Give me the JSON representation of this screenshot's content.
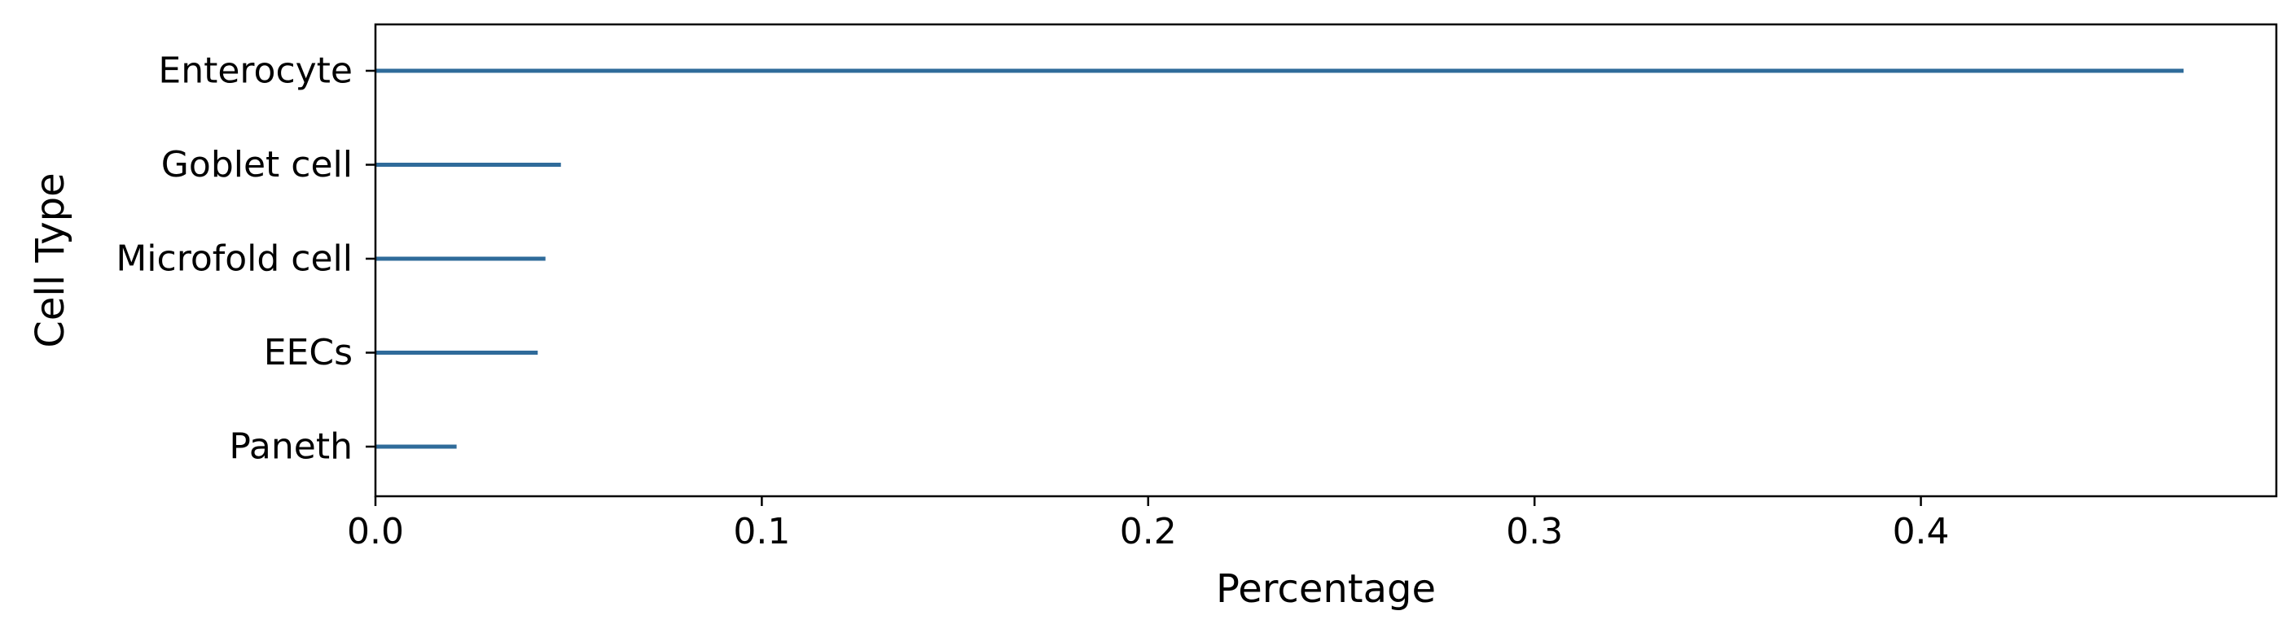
{
  "chart_data": {
    "type": "bar",
    "orientation": "horizontal",
    "categories": [
      "Enterocyte",
      "Goblet cell",
      "Microfold cell",
      "EECs",
      "Paneth"
    ],
    "values": [
      0.468,
      0.048,
      0.044,
      0.042,
      0.021
    ],
    "title": "",
    "xlabel": "Percentage",
    "ylabel": "Cell Type",
    "xlim": [
      0.0,
      0.492
    ],
    "xticks": [
      0.0,
      0.1,
      0.2,
      0.3,
      0.4
    ],
    "xtick_labels": [
      "0.0",
      "0.1",
      "0.2",
      "0.3",
      "0.4"
    ],
    "grid": false,
    "legend": "none",
    "bar_color": "#2f6b9a"
  }
}
